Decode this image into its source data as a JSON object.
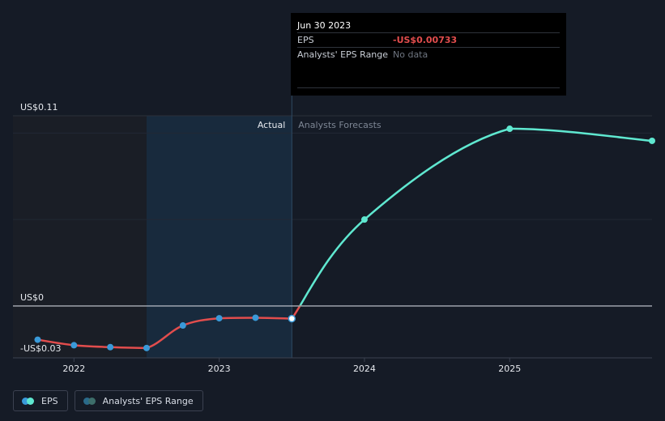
{
  "colors": {
    "background": "#151b26",
    "actual_line": "#e24d4d",
    "forecast_line": "#5fe8d0",
    "actual_marker": "#3a9ad9",
    "actual_region": "#182a3d",
    "past_region": "#1a1e26"
  },
  "tooltip": {
    "date": "Jun 30 2023",
    "eps_label": "EPS",
    "eps_value": "-US$0.00733",
    "range_label": "Analysts' EPS Range",
    "range_value": "No data"
  },
  "legend": {
    "eps_label": "EPS",
    "range_label": "Analysts' EPS Range"
  },
  "chart_data": {
    "type": "line",
    "title": "",
    "xlabel": "",
    "ylabel": "",
    "ylim": [
      -0.03,
      0.11
    ],
    "y_tick_labels": [
      {
        "value": 0.11,
        "label": "US$0.11"
      },
      {
        "value": 0,
        "label": "US$0"
      },
      {
        "value": -0.03,
        "label": "-US$0.03"
      }
    ],
    "x_tick_labels": [
      {
        "value": 2022,
        "label": "2022"
      },
      {
        "value": 2023,
        "label": "2023"
      },
      {
        "value": 2024,
        "label": "2024"
      },
      {
        "value": 2025,
        "label": "2025"
      }
    ],
    "xlim": [
      2021.58,
      2025.98
    ],
    "region_labels": {
      "actual": "Actual",
      "forecast": "Analysts Forecasts"
    },
    "actual_region_start": 2022.5,
    "actual_end": 2023.5,
    "grid": true,
    "legend_position": "bottom-left",
    "series": [
      {
        "name": "EPS",
        "values": [
          {
            "x": 2021.75,
            "y": -0.0195
          },
          {
            "x": 2022.0,
            "y": -0.0227
          },
          {
            "x": 2022.25,
            "y": -0.0238
          },
          {
            "x": 2022.5,
            "y": -0.0243
          },
          {
            "x": 2022.75,
            "y": -0.0113
          },
          {
            "x": 2023.0,
            "y": -0.0071
          },
          {
            "x": 2023.25,
            "y": -0.0068
          },
          {
            "x": 2023.5,
            "y": -0.0073
          }
        ]
      },
      {
        "name": "Analysts Forecasts",
        "values": [
          {
            "x": 2023.5,
            "y": -0.0073
          },
          {
            "x": 2024.0,
            "y": 0.05
          },
          {
            "x": 2025.0,
            "y": 0.1025
          },
          {
            "x": 2025.98,
            "y": 0.0955
          }
        ]
      }
    ]
  }
}
